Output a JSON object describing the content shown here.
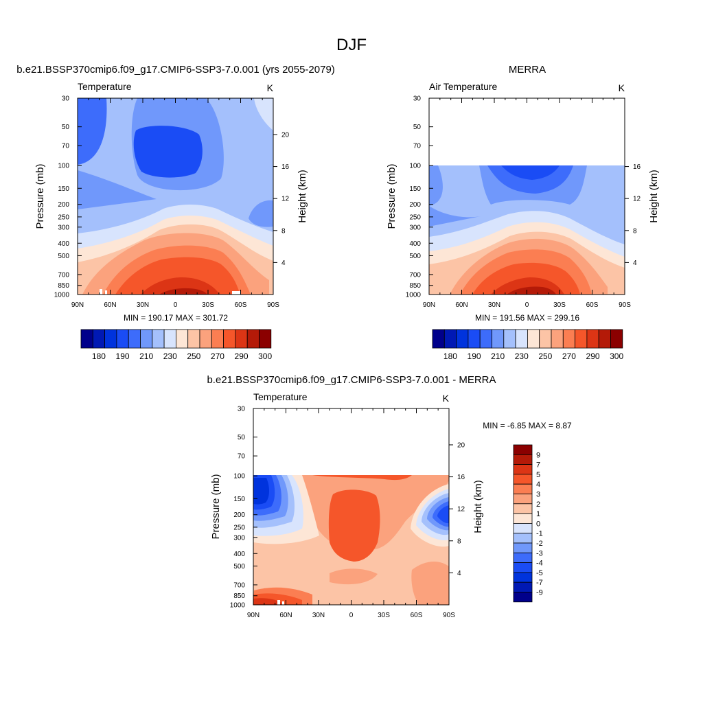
{
  "page_title": "DJF",
  "chart_data": [
    {
      "type": "heatmap",
      "title": "b.e21.BSSP370cmip6.f09_g17.CMIP6-SSP3-7.0.001 (yrs 2055-2079)",
      "variable": "Temperature",
      "units": "K",
      "ylabel": "Pressure (mb)",
      "ylabel_right": "Height (km)",
      "x_ticks": [
        "90N",
        "60N",
        "30N",
        "0",
        "30S",
        "60S",
        "90S"
      ],
      "y_ticks": [
        "30",
        "50",
        "70",
        "100",
        "150",
        "200",
        "250",
        "300",
        "400",
        "500",
        "700",
        "850",
        "1000"
      ],
      "y_ticks_right": [
        "20",
        "16",
        "12",
        "8",
        "4"
      ],
      "y_scale": "log",
      "min_max_label": "MIN = 190.17  MAX = 301.72",
      "colorbar_labels": [
        "180",
        "190",
        "210",
        "230",
        "250",
        "270",
        "290",
        "300"
      ]
    },
    {
      "type": "heatmap",
      "title": "MERRA",
      "variable": "Air Temperature",
      "units": "K",
      "ylabel": "Pressure (mb)",
      "ylabel_right": "Height (km)",
      "x_ticks": [
        "90N",
        "60N",
        "30N",
        "0",
        "30S",
        "60S",
        "90S"
      ],
      "y_ticks": [
        "30",
        "50",
        "70",
        "100",
        "150",
        "200",
        "250",
        "300",
        "400",
        "500",
        "700",
        "850",
        "1000"
      ],
      "y_ticks_right": [
        "16",
        "12",
        "8",
        "4"
      ],
      "y_scale": "log",
      "min_max_label": "MIN = 191.56  MAX = 299.16",
      "colorbar_labels": [
        "180",
        "190",
        "210",
        "230",
        "250",
        "270",
        "290",
        "300"
      ]
    },
    {
      "type": "heatmap",
      "title": "b.e21.BSSP370cmip6.f09_g17.CMIP6-SSP3-7.0.001 - MERRA",
      "variable": "Temperature",
      "units": "K",
      "ylabel": "Pressure (mb)",
      "ylabel_right": "Height (km)",
      "x_ticks": [
        "90N",
        "60N",
        "30N",
        "0",
        "30S",
        "60S",
        "90S"
      ],
      "y_ticks": [
        "30",
        "50",
        "70",
        "100",
        "150",
        "200",
        "250",
        "300",
        "400",
        "500",
        "700",
        "850",
        "1000"
      ],
      "y_ticks_right": [
        "20",
        "16",
        "12",
        "8",
        "4"
      ],
      "y_scale": "log",
      "min_max_label": "MIN =  -6.85  MAX =   8.87",
      "colorbar_labels": [
        "9",
        "7",
        "5",
        "4",
        "3",
        "2",
        "1",
        "0",
        "-1",
        "-2",
        "-3",
        "-4",
        "-5",
        "-7",
        "-9"
      ]
    }
  ],
  "palettes": {
    "temperature": [
      "#00008b",
      "#0019b4",
      "#0033dd",
      "#1a4cf5",
      "#3d6cfb",
      "#7098fb",
      "#a4c0fc",
      "#d8e4fd",
      "#fde6d6",
      "#fcc4a6",
      "#fba27d",
      "#fb7e52",
      "#f5562a",
      "#dc3515",
      "#b41a08",
      "#8b0000"
    ],
    "difference": [
      "#8b0000",
      "#b41a08",
      "#dc3515",
      "#f5562a",
      "#fb7e52",
      "#fba27d",
      "#fcc4a6",
      "#fde6d6",
      "#d8e4fd",
      "#a4c0fc",
      "#7098fb",
      "#3d6cfb",
      "#1a4cf5",
      "#0033dd",
      "#0019b4",
      "#00008b"
    ]
  }
}
